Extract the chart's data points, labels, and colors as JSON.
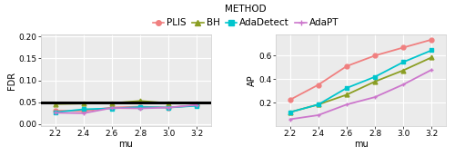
{
  "mu": [
    2.2,
    2.4,
    2.6,
    2.8,
    3.0,
    3.2
  ],
  "fdr": {
    "PLIS": [
      0.031,
      0.03,
      0.038,
      0.04,
      0.038,
      0.043
    ],
    "BH": [
      0.046,
      0.047,
      0.048,
      0.053,
      0.048,
      0.047
    ],
    "AdaDetect": [
      0.027,
      0.034,
      0.036,
      0.039,
      0.038,
      0.042
    ],
    "AdaPT": [
      0.026,
      0.025,
      0.037,
      0.036,
      0.038,
      0.044
    ]
  },
  "ap": {
    "PLIS": [
      0.225,
      0.352,
      0.51,
      0.6,
      0.668,
      0.735
    ],
    "BH": [
      0.12,
      0.185,
      0.268,
      0.38,
      0.475,
      0.585
    ],
    "AdaDetect": [
      0.12,
      0.185,
      0.325,
      0.42,
      0.545,
      0.645
    ],
    "AdaPT": [
      0.06,
      0.095,
      0.185,
      0.248,
      0.355,
      0.48
    ]
  },
  "colors": {
    "PLIS": "#F08080",
    "BH": "#8B9E23",
    "AdaDetect": "#00C5CD",
    "AdaPT": "#CC77CC"
  },
  "markers": {
    "PLIS": "o",
    "BH": "^",
    "AdaDetect": "s",
    "AdaPT": "+"
  },
  "fdr_ylim": [
    -0.005,
    0.205
  ],
  "fdr_yticks": [
    0.0,
    0.05,
    0.1,
    0.15,
    0.2
  ],
  "fdr_yticklabels": [
    "0.00",
    "0.05",
    "0.10",
    "0.15",
    "0.20"
  ],
  "ap_ylim": [
    0.0,
    0.78
  ],
  "ap_yticks": [
    0.2,
    0.4,
    0.6
  ],
  "ap_yticklabels": [
    "0.2",
    "0.4",
    "0.6"
  ],
  "hline_y": 0.05,
  "bg_color": "#ebebeb",
  "grid_color": "white",
  "label_fontsize": 7,
  "tick_fontsize": 6.5,
  "legend_fontsize": 7.5,
  "markersize": 3.5,
  "linewidth": 1.3
}
